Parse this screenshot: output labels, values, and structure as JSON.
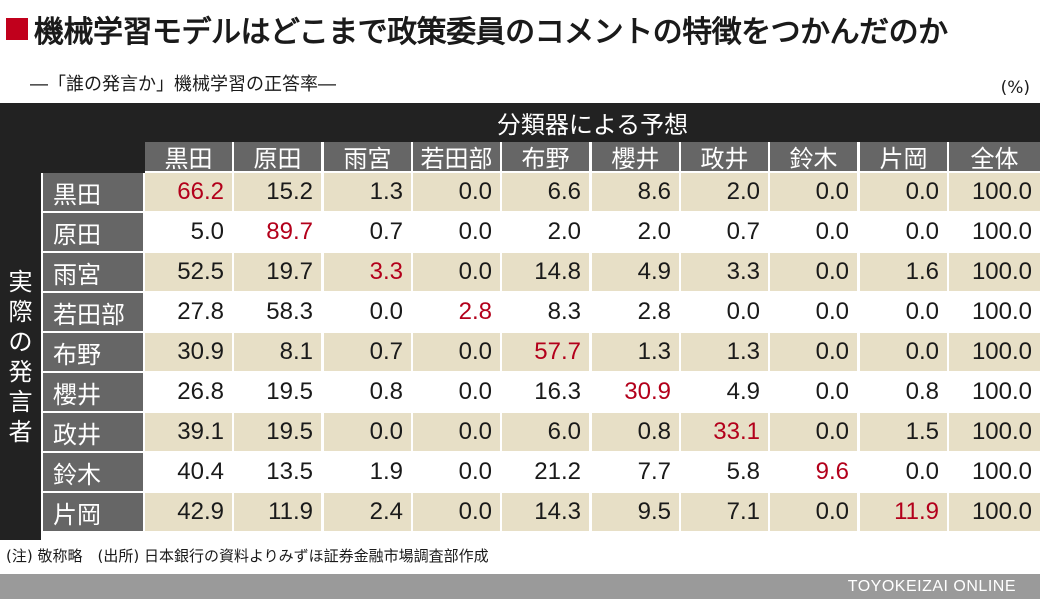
{
  "title": "機械学習モデルはどこまで政策委員のコメントの特徴をつかんだのか",
  "subtitle": "―「誰の発言か」機械学習の正答率―",
  "unit": "(%)",
  "table": {
    "group_header": "分類器による予想",
    "row_group_header": "実際の発言者",
    "columns": [
      "黒田",
      "原田",
      "雨宮",
      "若田部",
      "布野",
      "櫻井",
      "政井",
      "鈴木",
      "片岡",
      "全体"
    ],
    "rows": [
      {
        "label": "黒田",
        "values": [
          "66.2",
          "15.2",
          "1.3",
          "0.0",
          "6.6",
          "8.6",
          "2.0",
          "0.0",
          "0.0",
          "100.0"
        ]
      },
      {
        "label": "原田",
        "values": [
          "5.0",
          "89.7",
          "0.7",
          "0.0",
          "2.0",
          "2.0",
          "0.7",
          "0.0",
          "0.0",
          "100.0"
        ]
      },
      {
        "label": "雨宮",
        "values": [
          "52.5",
          "19.7",
          "3.3",
          "0.0",
          "14.8",
          "4.9",
          "3.3",
          "0.0",
          "1.6",
          "100.0"
        ]
      },
      {
        "label": "若田部",
        "values": [
          "27.8",
          "58.3",
          "0.0",
          "2.8",
          "8.3",
          "2.8",
          "0.0",
          "0.0",
          "0.0",
          "100.0"
        ]
      },
      {
        "label": "布野",
        "values": [
          "30.9",
          "8.1",
          "0.7",
          "0.0",
          "57.7",
          "1.3",
          "1.3",
          "0.0",
          "0.0",
          "100.0"
        ]
      },
      {
        "label": "櫻井",
        "values": [
          "26.8",
          "19.5",
          "0.8",
          "0.0",
          "16.3",
          "30.9",
          "4.9",
          "0.0",
          "0.8",
          "100.0"
        ]
      },
      {
        "label": "政井",
        "values": [
          "39.1",
          "19.5",
          "0.0",
          "0.0",
          "6.0",
          "0.8",
          "33.1",
          "0.0",
          "1.5",
          "100.0"
        ]
      },
      {
        "label": "鈴木",
        "values": [
          "40.4",
          "13.5",
          "1.9",
          "0.0",
          "21.2",
          "7.7",
          "5.8",
          "9.6",
          "0.0",
          "100.0"
        ]
      },
      {
        "label": "片岡",
        "values": [
          "42.9",
          "11.9",
          "2.4",
          "0.0",
          "14.3",
          "9.5",
          "7.1",
          "0.0",
          "11.9",
          "100.0"
        ]
      }
    ]
  },
  "note": "(注) 敬称略　(出所) 日本銀行の資料よりみずほ証券金融市場調査部作成",
  "footer": "TOYOKEIZAI  ONLINE",
  "colors": {
    "accent_red": "#b3001b",
    "title_marker": "#c1001c",
    "row_shade": "#e7dfc6",
    "header_dark": "#222222",
    "header_grey": "#666666"
  }
}
